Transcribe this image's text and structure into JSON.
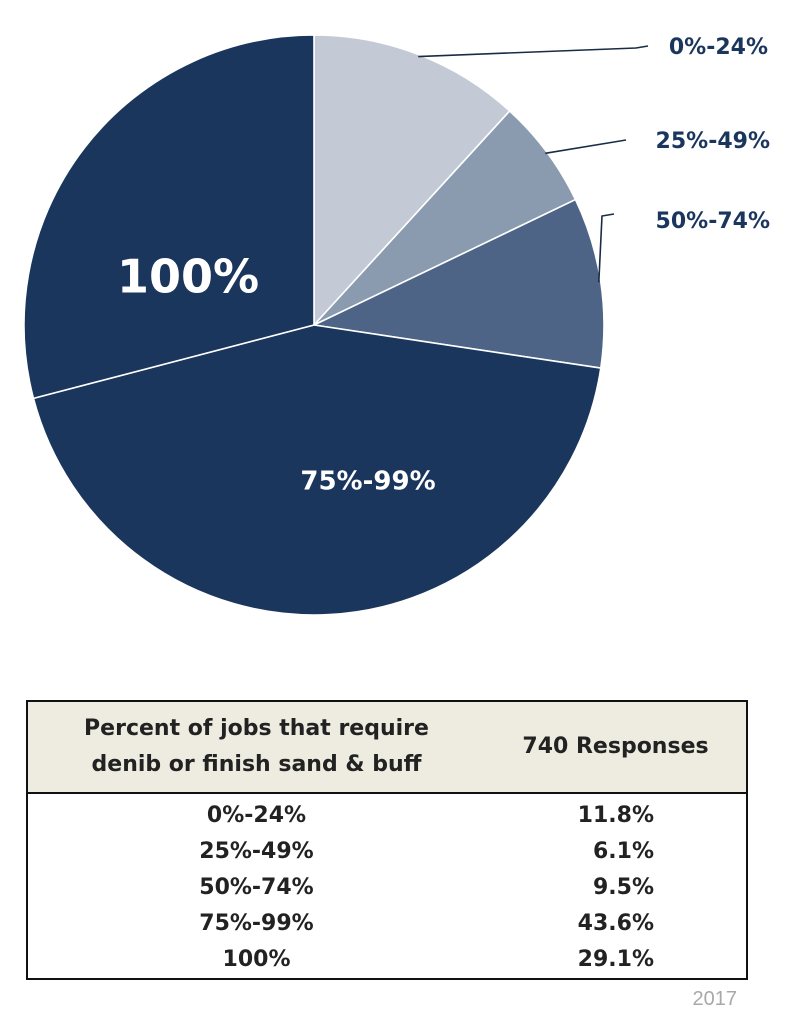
{
  "chart_data": {
    "type": "pie",
    "categories": [
      "0%-24%",
      "25%-49%",
      "50%-74%",
      "75%-99%",
      "100%"
    ],
    "values": [
      11.8,
      6.1,
      9.5,
      43.6,
      29.1
    ],
    "colors": [
      "#c3cad6",
      "#8a9bb0",
      "#4e6486",
      "#1b365d",
      "#1b365d"
    ],
    "start": "12 o'clock, clockwise"
  },
  "table": {
    "header": {
      "col1_line1": "Percent of jobs that require",
      "col1_line2": "denib or finish sand & buff",
      "col2": "740 Responses"
    },
    "rows": [
      {
        "range": "0%-24%",
        "percent": "11.8%"
      },
      {
        "range": "25%-49%",
        "percent": "6.1%"
      },
      {
        "range": "50%-74%",
        "percent": "9.5%"
      },
      {
        "range": "75%-99%",
        "percent": "43.6%"
      },
      {
        "range": "100%",
        "percent": "29.1%"
      }
    ]
  },
  "footer": {
    "year": "2017"
  }
}
